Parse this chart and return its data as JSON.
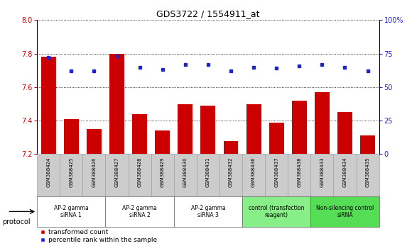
{
  "title": "GDS3722 / 1554911_at",
  "samples": [
    "GSM388424",
    "GSM388425",
    "GSM388426",
    "GSM388427",
    "GSM388428",
    "GSM388429",
    "GSM388430",
    "GSM388431",
    "GSM388432",
    "GSM388436",
    "GSM388437",
    "GSM388438",
    "GSM388433",
    "GSM388434",
    "GSM388435"
  ],
  "transformed_count": [
    7.78,
    7.41,
    7.35,
    7.8,
    7.44,
    7.34,
    7.5,
    7.49,
    7.28,
    7.5,
    7.39,
    7.52,
    7.57,
    7.45,
    7.31
  ],
  "percentile_rank": [
    72,
    62,
    62,
    73,
    65,
    63,
    67,
    67,
    62,
    65,
    64,
    66,
    67,
    65,
    62
  ],
  "ylim_left": [
    7.2,
    8.0
  ],
  "ylim_right": [
    0,
    100
  ],
  "yticks_left": [
    7.2,
    7.4,
    7.6,
    7.8,
    8.0
  ],
  "yticks_right": [
    0,
    25,
    50,
    75,
    100
  ],
  "bar_color": "#cc0000",
  "dot_color": "#2222cc",
  "groups": [
    {
      "label": "AP-2 gamma\nsiRNA 1",
      "start": 0,
      "end": 3,
      "color": "#ffffff"
    },
    {
      "label": "AP-2 gamma\nsiRNA 2",
      "start": 3,
      "end": 6,
      "color": "#ffffff"
    },
    {
      "label": "AP-2 gamma\nsiRNA 3",
      "start": 6,
      "end": 9,
      "color": "#ffffff"
    },
    {
      "label": "control (transfection\nreagent)",
      "start": 9,
      "end": 12,
      "color": "#88ee88"
    },
    {
      "label": "Non-silencing control\nsiRNA",
      "start": 12,
      "end": 15,
      "color": "#55dd55"
    }
  ],
  "protocol_label": "protocol",
  "legend_bar_label": "transformed count",
  "legend_dot_label": "percentile rank within the sample",
  "sample_bg": "#cccccc",
  "plot_bg": "#ffffff"
}
